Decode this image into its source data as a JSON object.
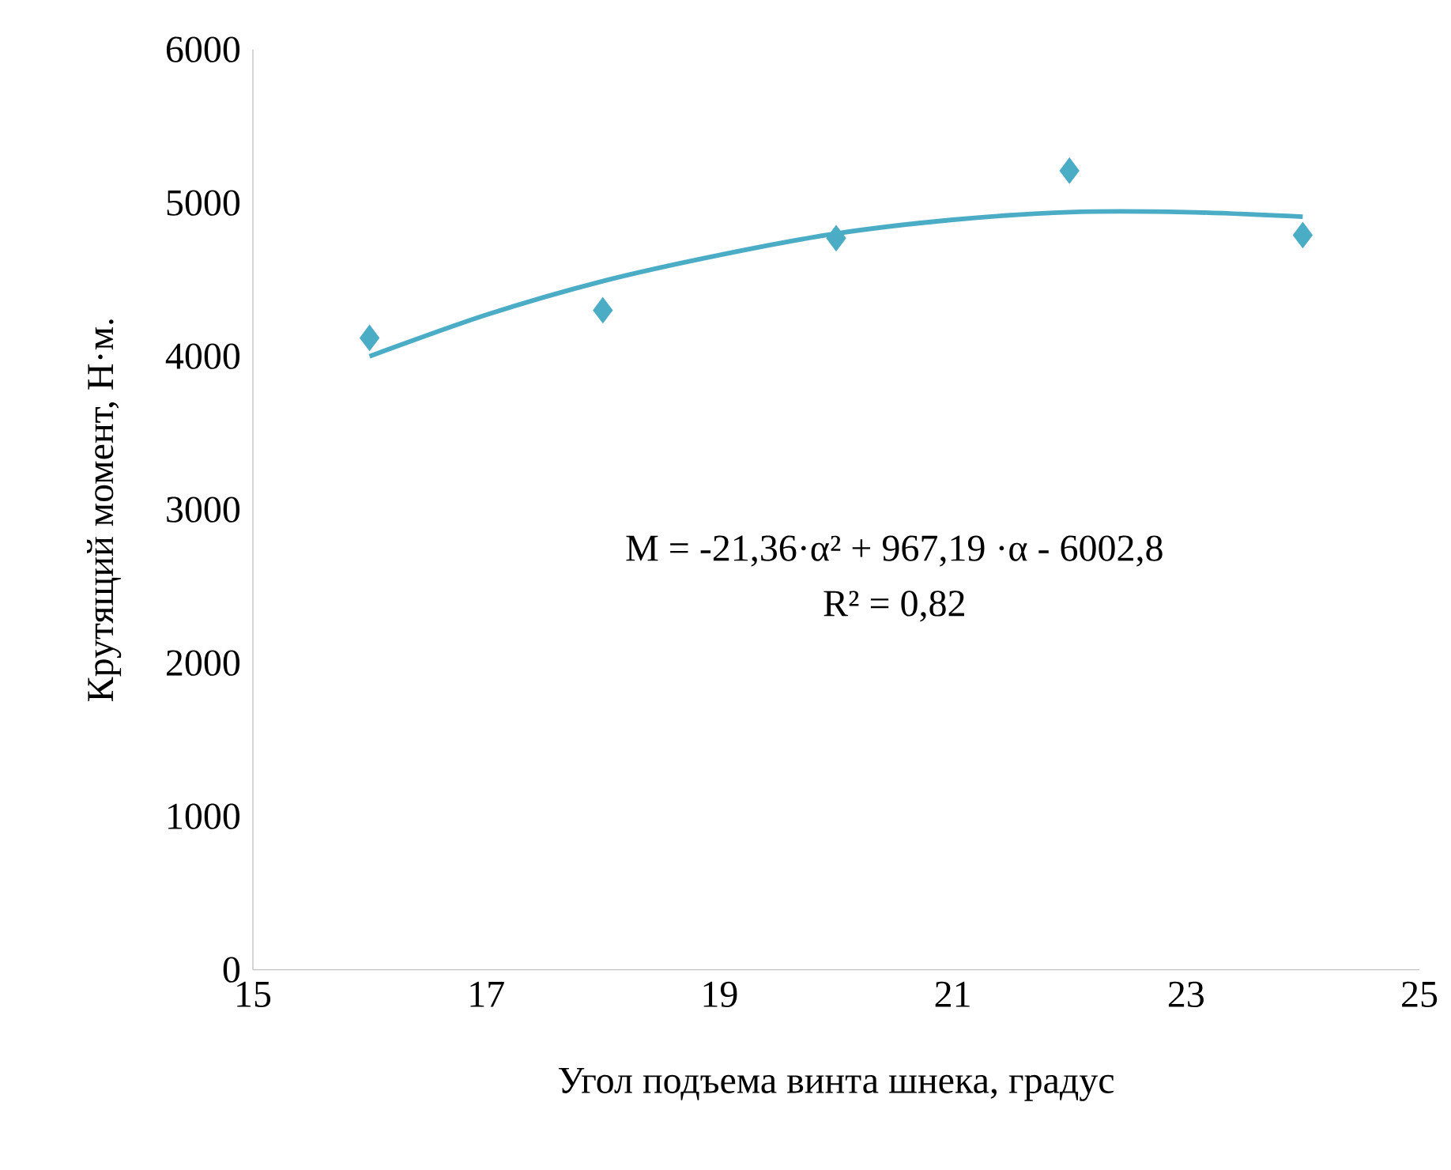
{
  "chart_data": {
    "type": "scatter",
    "xlabel": "Угол подъема винта шнека, градус",
    "ylabel": "Крутящий момент, Н·м.",
    "x": [
      16,
      18,
      20,
      22,
      24
    ],
    "series": [
      {
        "color": "#4bacc6",
        "marker": "diamond",
        "values": [
          4120,
          4300,
          4770,
          5210,
          4790
        ]
      },
      {
        "type": "line",
        "color": "#4bacc6",
        "x": [
          16,
          17,
          18,
          19,
          20,
          21,
          22,
          23,
          24
        ],
        "values": [
          4000,
          4270,
          4490,
          4660,
          4800,
          4890,
          4940,
          4940,
          4910
        ]
      }
    ],
    "xlim": [
      15,
      25
    ],
    "xticks": [
      15,
      17,
      19,
      21,
      23,
      25
    ],
    "ylim": [
      0,
      6000
    ],
    "yticks": [
      0,
      1000,
      2000,
      3000,
      4000,
      5000,
      6000
    ],
    "annotations": [
      "M = -21,36·α² + 967,19 ·α - 6002,8",
      "R² = 0,82"
    ]
  }
}
